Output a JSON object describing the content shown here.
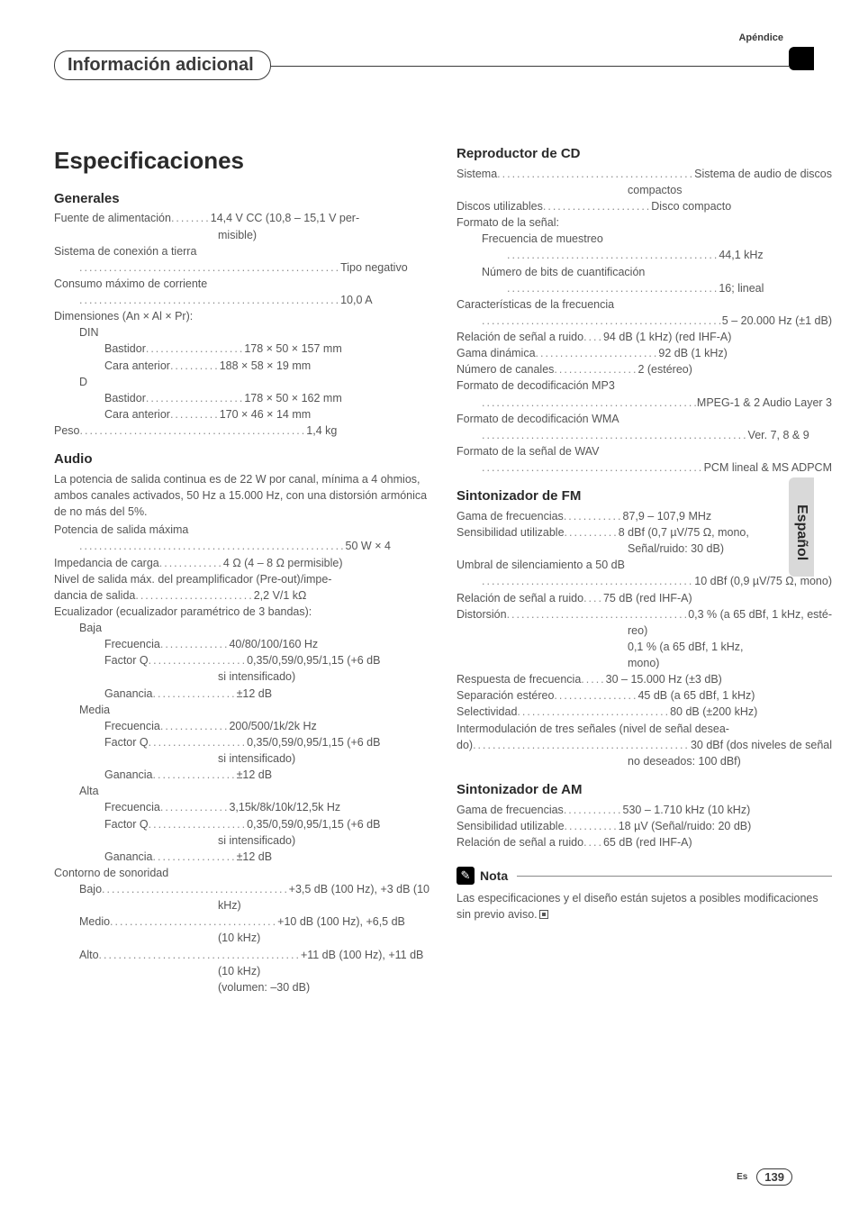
{
  "header": {
    "appendix": "Apéndice",
    "title": "Información adicional"
  },
  "sidetab": "Español",
  "footer": {
    "lang": "Es",
    "page": "139"
  },
  "left": {
    "main_title": "Especificaciones",
    "generales": {
      "heading": "Generales",
      "fuente_l": "Fuente de alimentación",
      "fuente_v": "14,4 V CC (10,8 – 15,1 V per-",
      "fuente_cont": "misible)",
      "sist_l": "Sistema de conexión a tierra",
      "sist_v": "Tipo negativo",
      "cons_l": "Consumo máximo de corriente",
      "cons_v": "10,0 A",
      "dim_l": "Dimensiones (An × Al × Pr):",
      "din": "DIN",
      "din_bast_l": "Bastidor",
      "din_bast_v": "178 × 50 × 157 mm",
      "din_cara_l": "Cara anterior",
      "din_cara_v": "188 × 58 × 19 mm",
      "d": "D",
      "d_bast_l": "Bastidor",
      "d_bast_v": "178 × 50 × 162 mm",
      "d_cara_l": "Cara anterior",
      "d_cara_v": "170 × 46 × 14 mm",
      "peso_l": "Peso",
      "peso_v": "1,4 kg"
    },
    "audio": {
      "heading": "Audio",
      "para": "La potencia de salida continua es de 22 W por canal, mínima a 4 ohmios, ambos canales activados, 50 Hz a 15.000 Hz, con una distorsión armónica de no más del 5%.",
      "pot_l": "Potencia de salida máxima",
      "pot_v": "50 W × 4",
      "imp_l": "Impedancia de carga",
      "imp_v": "4 Ω (4 – 8 Ω permisible)",
      "niv_l": "Nivel de salida máx. del preamplificador (Pre-out)/impe-",
      "niv2_l": "dancia de salida",
      "niv2_v": "2,2 V/1 kΩ",
      "eq_l": "Ecualizador (ecualizador paramétrico de 3 bandas):",
      "baja": "Baja",
      "baja_f_l": "Frecuencia",
      "baja_f_v": "40/80/100/160 Hz",
      "baja_q_l": "Factor Q",
      "baja_q_v": "0,35/0,59/0,95/1,15 (+6 dB",
      "baja_q_cont": "si intensificado)",
      "baja_g_l": "Ganancia",
      "baja_g_v": "±12 dB",
      "media": "Media",
      "med_f_l": "Frecuencia",
      "med_f_v": "200/500/1k/2k Hz",
      "med_q_l": "Factor Q",
      "med_q_v": "0,35/0,59/0,95/1,15 (+6 dB",
      "med_q_cont": "si intensificado)",
      "med_g_l": "Ganancia",
      "med_g_v": "±12 dB",
      "alta": "Alta",
      "alt_f_l": "Frecuencia",
      "alt_f_v": "3,15k/8k/10k/12,5k Hz",
      "alt_q_l": "Factor Q",
      "alt_q_v": "0,35/0,59/0,95/1,15 (+6 dB",
      "alt_q_cont": "si intensificado)",
      "alt_g_l": "Ganancia",
      "alt_g_v": "±12 dB",
      "cont_l": "Contorno de sonoridad",
      "bajo_l": "Bajo",
      "bajo_v": "+3,5 dB (100 Hz), +3 dB (10",
      "bajo_cont": "kHz)",
      "medio_l": "Medio",
      "medio_v": "+10 dB (100 Hz), +6,5 dB",
      "medio_cont": "(10 kHz)",
      "alto_l": "Alto",
      "alto_v": "+11 dB (100 Hz), +11 dB",
      "alto_cont": "(10 kHz)",
      "alto_cont2": "(volumen: –30 dB)"
    }
  },
  "right": {
    "cd": {
      "heading": "Reproductor de CD",
      "sist_l": "Sistema",
      "sist_v": "Sistema de audio de discos",
      "sist_cont": "compactos",
      "disc_l": "Discos utilizables",
      "disc_v": "Disco compacto",
      "form_l": "Formato de la señal:",
      "freq_l": "Frecuencia de muestreo",
      "freq_v": "44,1 kHz",
      "bits_l": "Número de bits de cuantificación",
      "bits_v": "16; lineal",
      "carac_l": "Características de la frecuencia",
      "carac_v": "5 – 20.000 Hz (±1 dB)",
      "rel_l": "Relación de señal a ruido",
      "rel_v": "94 dB (1 kHz) (red IHF-A)",
      "gama_l": "Gama dinámica",
      "gama_v": "92 dB (1 kHz)",
      "can_l": "Número de canales",
      "can_v": "2 (estéreo)",
      "mp3_l": "Formato de decodificación MP3",
      "mp3_v": "MPEG-1 & 2 Audio Layer 3",
      "wma_l": "Formato de decodificación WMA",
      "wma_v": "Ver. 7, 8 & 9",
      "wav_l": "Formato de la señal de WAV",
      "wav_v": "PCM lineal & MS ADPCM"
    },
    "fm": {
      "heading": "Sintonizador de FM",
      "gama_l": "Gama de frecuencias",
      "gama_v": "87,9 – 107,9 MHz",
      "sens_l": "Sensibilidad utilizable",
      "sens_v": "8 dBf (0,7 µV/75 Ω, mono,",
      "sens_cont": "Señal/ruido: 30 dB)",
      "umb_l": "Umbral de silenciamiento a 50 dB",
      "umb_v": "10 dBf (0,9 µV/75 Ω, mono)",
      "rel_l": "Relación de señal a ruido",
      "rel_v": "75 dB (red IHF-A)",
      "dist_l": "Distorsión",
      "dist_v": "0,3 % (a 65 dBf, 1 kHz, esté-",
      "dist_c1": "reo)",
      "dist_c2": "0,1 % (a 65 dBf, 1 kHz,",
      "dist_c3": "mono)",
      "resp_l": "Respuesta de frecuencia",
      "resp_v": "30 – 15.000 Hz (±3 dB)",
      "sep_l": "Separación estéreo",
      "sep_v": "45 dB (a 65 dBf, 1 kHz)",
      "sel_l": "Selectividad",
      "sel_v": "80 dB (±200 kHz)",
      "int_l": "Intermodulación de tres señales (nivel de señal desea-",
      "int2_l": "do)",
      "int2_v": "30 dBf (dos niveles de señal",
      "int_cont": "no deseados: 100 dBf)"
    },
    "am": {
      "heading": "Sintonizador de AM",
      "gama_l": "Gama de frecuencias",
      "gama_v": "530 – 1.710 kHz (10 kHz)",
      "sens_l": "Sensibilidad utilizable",
      "sens_v": "18 µV (Señal/ruido: 20 dB)",
      "rel_l": "Relación de señal a ruido",
      "rel_v": "65 dB (red IHF-A)"
    },
    "nota": {
      "label": "Nota",
      "text": "Las especificaciones y el diseño están sujetos a posibles modificaciones sin previo aviso."
    }
  }
}
